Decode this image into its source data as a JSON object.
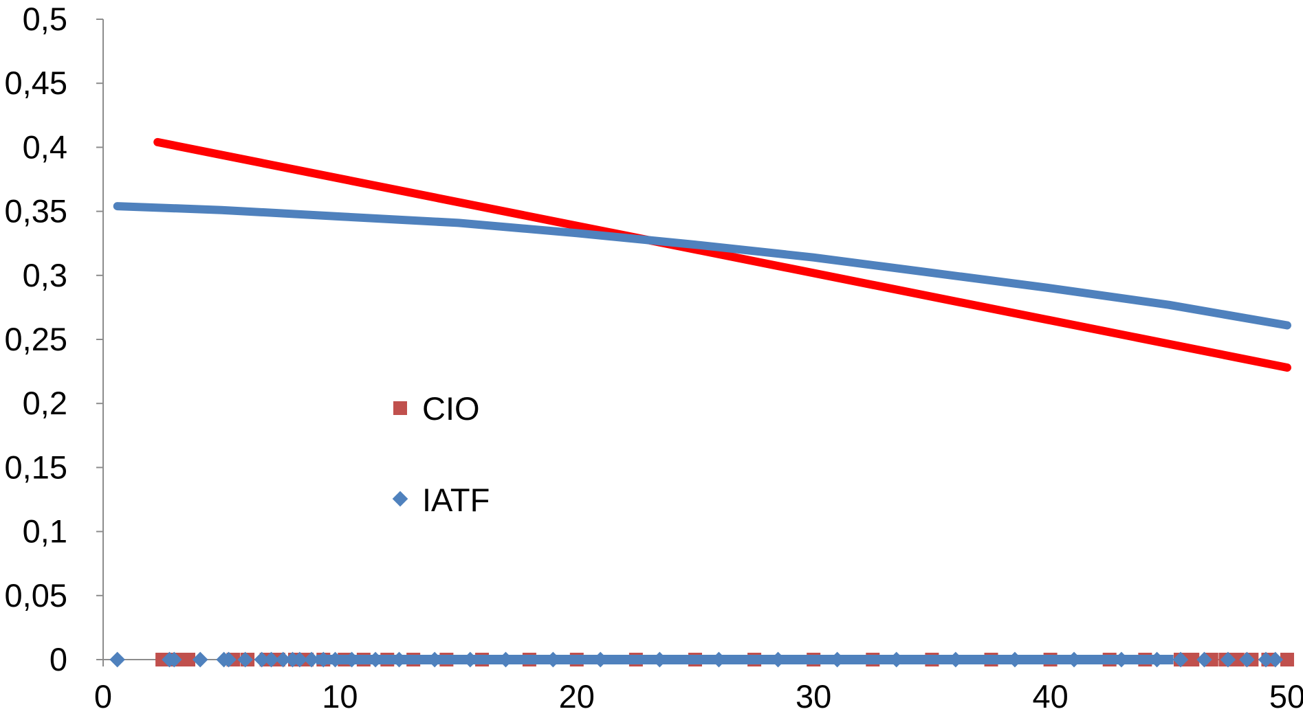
{
  "chart_data": {
    "type": "scatter",
    "title": "",
    "xlabel": "",
    "ylabel": "",
    "xlim": [
      0,
      50
    ],
    "ylim": [
      0,
      0.5
    ],
    "x_ticks": [
      "0",
      "10",
      "20",
      "30",
      "40",
      "50"
    ],
    "y_ticks": [
      "0",
      "0,05",
      "0,1",
      "0,15",
      "0,2",
      "0,25",
      "0,3",
      "0,35",
      "0,4",
      "0,45",
      "0,5"
    ],
    "grid": false,
    "legend_position": "center-left",
    "series": [
      {
        "name": "CIO",
        "marker": "square",
        "color": "#c0504d",
        "x": [
          2.5,
          3.0,
          3.3,
          3.6,
          5.5,
          6.1,
          6.9,
          7.4,
          8.1,
          8.6,
          9.3,
          10.2,
          11.0,
          12.0,
          13.1,
          14.5,
          16.0,
          18.0,
          20.0,
          22.5,
          25.0,
          27.5,
          30.0,
          32.5,
          35.0,
          37.5,
          40.0,
          42.5,
          44.0,
          45.5,
          46.0,
          46.8,
          47.4,
          47.9,
          48.5,
          49.2,
          50.0
        ],
        "y": [
          0,
          0,
          0,
          0,
          0,
          0,
          0,
          0,
          0,
          0,
          0,
          0,
          0,
          0,
          0,
          0,
          0,
          0,
          0,
          0,
          0,
          0,
          0,
          0,
          0,
          0,
          0,
          0,
          0,
          0,
          0,
          0,
          0,
          0,
          0,
          0,
          0
        ],
        "trendline": {
          "color": "#ff0000",
          "x": [
            2.3,
            50.0
          ],
          "y": [
            0.404,
            0.228
          ]
        }
      },
      {
        "name": "IATF",
        "marker": "diamond",
        "color": "#4f81bd",
        "x": [
          0.6,
          2.8,
          3.0,
          4.1,
          5.1,
          5.3,
          6.0,
          6.7,
          7.1,
          7.6,
          8.0,
          8.3,
          8.8,
          9.3,
          9.8,
          10.5,
          11.5,
          12.5,
          14.0,
          15.5,
          17.0,
          19.0,
          21.0,
          23.5,
          26.0,
          28.5,
          31.0,
          33.5,
          36.0,
          38.5,
          41.0,
          43.0,
          44.5,
          45.5,
          46.5,
          47.5,
          48.3,
          49.1,
          49.5
        ],
        "y": [
          0,
          0,
          0,
          0,
          0,
          0,
          0,
          0,
          0,
          0,
          0,
          0,
          0,
          0,
          0,
          0,
          0,
          0,
          0,
          0,
          0,
          0,
          0,
          0,
          0,
          0,
          0,
          0,
          0,
          0,
          0,
          0,
          0,
          0,
          0,
          0,
          0,
          0,
          0
        ],
        "trendline": {
          "color": "#4f81bd",
          "x": [
            0.6,
            5,
            10,
            15,
            20,
            25,
            30,
            35,
            40,
            45,
            50.0
          ],
          "y": [
            0.354,
            0.351,
            0.346,
            0.341,
            0.333,
            0.324,
            0.314,
            0.302,
            0.29,
            0.277,
            0.261
          ]
        }
      }
    ]
  }
}
